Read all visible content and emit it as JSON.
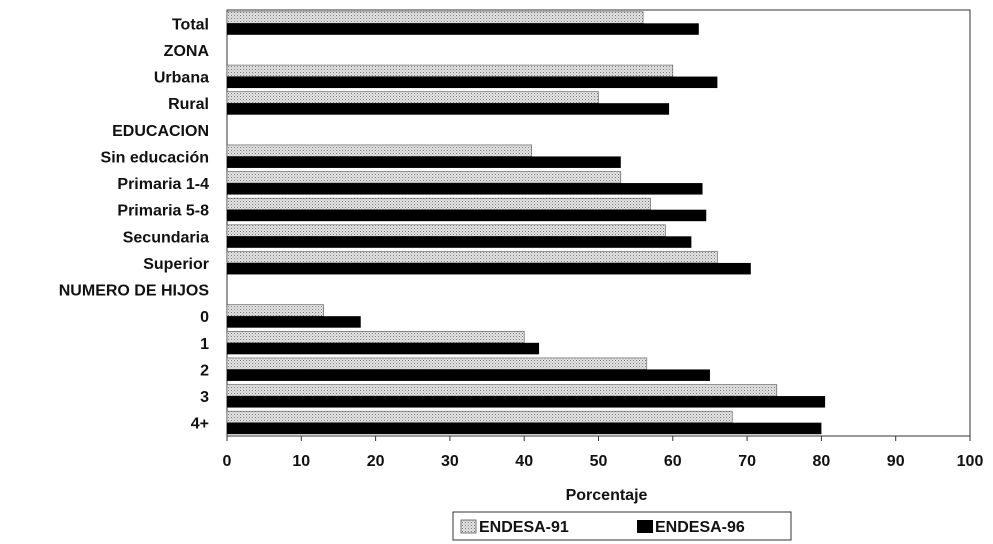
{
  "chart_data": {
    "type": "bar",
    "orientation": "horizontal",
    "categories": [
      "Total",
      "ZONA",
      "Urbana",
      "Rural",
      "EDUCACION",
      "Sin educación",
      "Primaria 1-4",
      "Primaria 5-8",
      "Secundaria",
      "Superior",
      "NUMERO DE HIJOS",
      "0",
      "1",
      "2",
      "3",
      "4+"
    ],
    "series": [
      {
        "name": "ENDESA-91",
        "values": [
          56,
          null,
          60,
          50,
          null,
          41,
          53,
          57,
          59,
          66,
          null,
          13,
          40,
          56.5,
          74,
          68
        ],
        "color": "#c8c8c8",
        "pattern": "dotted"
      },
      {
        "name": "ENDESA-96",
        "values": [
          63.5,
          null,
          66,
          59.5,
          null,
          53,
          64,
          64.5,
          62.5,
          70.5,
          null,
          18,
          42,
          65,
          80.5,
          80
        ],
        "color": "#000000"
      }
    ],
    "xlabel": "Porcentaje",
    "xlim": [
      0,
      100
    ],
    "xticks": [
      0,
      10,
      20,
      30,
      40,
      50,
      60,
      70,
      80,
      90,
      100
    ],
    "grid": false,
    "legend_position": "bottom"
  }
}
